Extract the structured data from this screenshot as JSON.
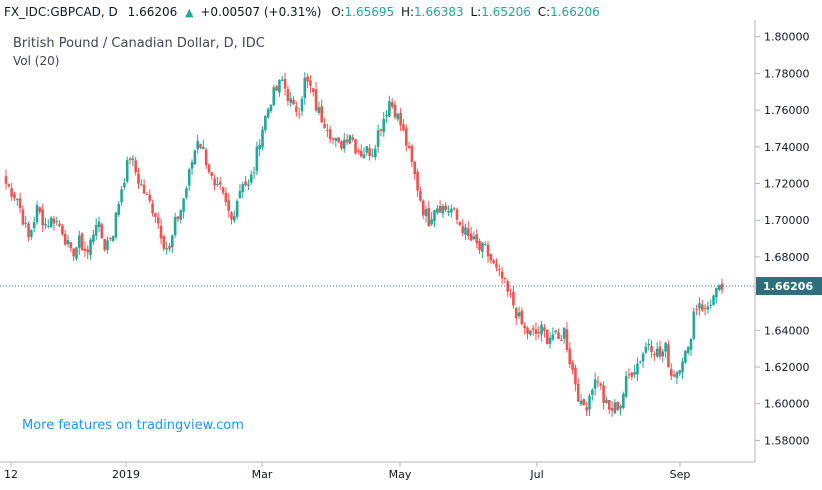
{
  "header": {
    "symbol": "FX_IDC:GBPCAD, D",
    "last": "1.66206",
    "change": "+0.00507 (+0.31%)",
    "open_label": "O:",
    "open": "1.65695",
    "high_label": "H:",
    "high": "1.66383",
    "low_label": "L:",
    "low": "1.65206",
    "close_label": "C:",
    "close": "1.66206",
    "up_arrow": "▲"
  },
  "legend": {
    "title": "British Pound / Canadian Dollar, D, IDC",
    "volume": "Vol (20)"
  },
  "promo_text": "More features on tradingview.com",
  "chart_data": {
    "type": "candlestick",
    "title": "British Pound / Canadian Dollar, D, IDC",
    "ylim": [
      1.56824,
      1.80912
    ],
    "yticks": [
      "1.80000",
      "1.78000",
      "1.76000",
      "1.74000",
      "1.72000",
      "1.70000",
      "1.68000",
      "1.66000",
      "1.64000",
      "1.62000",
      "1.60000",
      "1.58000"
    ],
    "xticks": [
      "12",
      "2019",
      "Mar",
      "May",
      "Jul",
      "Sep"
    ],
    "last_price_label": "1.66206",
    "last_price": 1.66206,
    "grid": false,
    "candles": [],
    "close_path": [
      [
        0,
        1.72
      ],
      [
        4,
        1.712
      ],
      [
        8,
        1.69
      ],
      [
        11,
        1.706
      ],
      [
        14,
        1.698
      ],
      [
        17,
        1.701
      ],
      [
        20,
        1.695
      ],
      [
        23,
        1.681
      ],
      [
        26,
        1.688
      ],
      [
        29,
        1.682
      ],
      [
        32,
        1.7
      ],
      [
        35,
        1.686
      ],
      [
        38,
        1.694
      ],
      [
        41,
        1.718
      ],
      [
        44,
        1.735
      ],
      [
        47,
        1.722
      ],
      [
        50,
        1.712
      ],
      [
        53,
        1.704
      ],
      [
        56,
        1.688
      ],
      [
        58,
        1.683
      ],
      [
        60,
        1.698
      ],
      [
        62,
        1.706
      ],
      [
        64,
        1.718
      ],
      [
        66,
        1.732
      ],
      [
        68,
        1.745
      ],
      [
        70,
        1.738
      ],
      [
        72,
        1.728
      ],
      [
        74,
        1.716
      ],
      [
        76,
        1.716
      ],
      [
        78,
        1.708
      ],
      [
        80,
        1.7
      ],
      [
        82,
        1.712
      ],
      [
        84,
        1.722
      ],
      [
        86,
        1.718
      ],
      [
        88,
        1.728
      ],
      [
        90,
        1.745
      ],
      [
        92,
        1.756
      ],
      [
        94,
        1.766
      ],
      [
        96,
        1.771
      ],
      [
        98,
        1.776
      ],
      [
        100,
        1.768
      ],
      [
        102,
        1.76
      ],
      [
        104,
        1.762
      ],
      [
        106,
        1.776
      ],
      [
        108,
        1.772
      ],
      [
        110,
        1.762
      ],
      [
        112,
        1.756
      ],
      [
        114,
        1.752
      ],
      [
        116,
        1.744
      ],
      [
        118,
        1.74
      ],
      [
        120,
        1.744
      ],
      [
        122,
        1.748
      ],
      [
        124,
        1.74
      ],
      [
        126,
        1.737
      ],
      [
        128,
        1.738
      ],
      [
        130,
        1.738
      ],
      [
        132,
        1.748
      ],
      [
        134,
        1.756
      ],
      [
        136,
        1.765
      ],
      [
        138,
        1.76
      ],
      [
        140,
        1.752
      ],
      [
        142,
        1.742
      ],
      [
        144,
        1.73
      ],
      [
        146,
        1.718
      ],
      [
        148,
        1.706
      ],
      [
        150,
        1.7
      ],
      [
        152,
        1.708
      ],
      [
        154,
        1.708
      ],
      [
        156,
        1.706
      ],
      [
        158,
        1.706
      ],
      [
        160,
        1.7
      ],
      [
        162,
        1.696
      ],
      [
        164,
        1.69
      ],
      [
        166,
        1.688
      ],
      [
        168,
        1.684
      ],
      [
        170,
        1.684
      ],
      [
        172,
        1.678
      ],
      [
        174,
        1.672
      ],
      [
        176,
        1.668
      ],
      [
        178,
        1.66
      ],
      [
        180,
        1.654
      ],
      [
        182,
        1.646
      ],
      [
        184,
        1.64
      ],
      [
        186,
        1.638
      ],
      [
        188,
        1.638
      ],
      [
        190,
        1.64
      ],
      [
        192,
        1.636
      ],
      [
        194,
        1.638
      ],
      [
        196,
        1.634
      ],
      [
        198,
        1.64
      ],
      [
        200,
        1.624
      ],
      [
        202,
        1.612
      ],
      [
        204,
        1.598
      ],
      [
        206,
        1.6
      ],
      [
        208,
        1.61
      ],
      [
        210,
        1.614
      ],
      [
        212,
        1.602
      ],
      [
        214,
        1.596
      ],
      [
        216,
        1.598
      ],
      [
        218,
        1.6
      ],
      [
        220,
        1.612
      ],
      [
        222,
        1.618
      ],
      [
        224,
        1.622
      ],
      [
        226,
        1.628
      ],
      [
        228,
        1.634
      ],
      [
        230,
        1.63
      ],
      [
        232,
        1.626
      ],
      [
        234,
        1.63
      ],
      [
        236,
        1.616
      ],
      [
        238,
        1.618
      ],
      [
        240,
        1.626
      ],
      [
        242,
        1.628
      ],
      [
        244,
        1.65
      ],
      [
        246,
        1.656
      ],
      [
        248,
        1.65
      ],
      [
        250,
        1.656
      ],
      [
        252,
        1.66
      ],
      [
        254,
        1.662
      ]
    ]
  },
  "colors": {
    "up": "#26a69a",
    "down": "#ef5350",
    "last_line": "#2f6f7c",
    "last_label_bg": "#2f6f7c",
    "axis": "#b2b5be",
    "axis_text": "#131722"
  }
}
